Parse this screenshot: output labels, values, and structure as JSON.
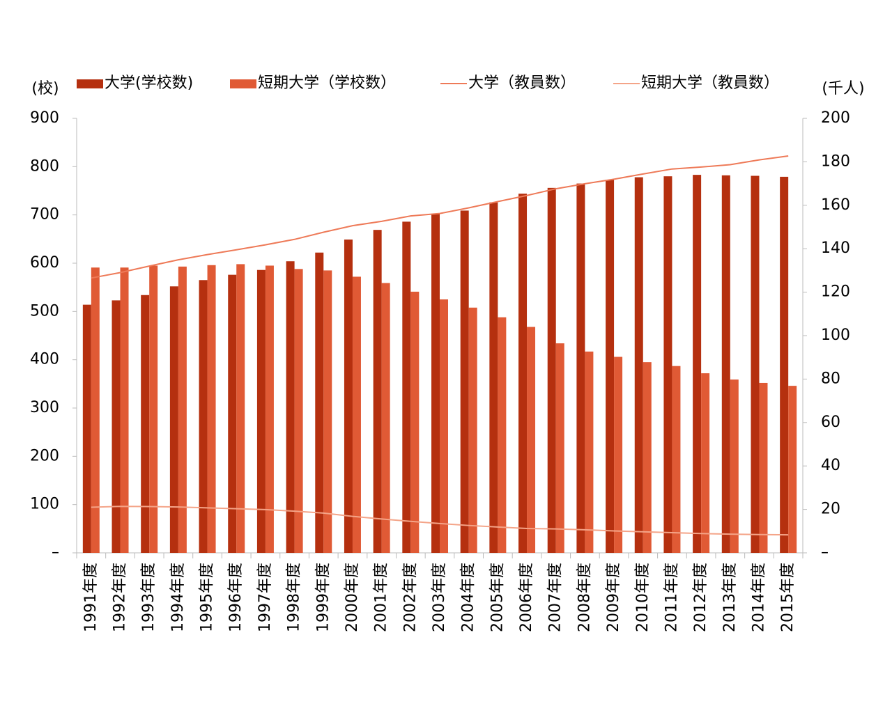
{
  "chart_data": {
    "type": "bar",
    "y_label": "(校)",
    "y2_label": "(千人)",
    "categories": [
      "1991年度",
      "1992年度",
      "1993年度",
      "1994年度",
      "1995年度",
      "1996年度",
      "1997年度",
      "1998年度",
      "1999年度",
      "2000年度",
      "2001年度",
      "2002年度",
      "2003年度",
      "2004年度",
      "2005年度",
      "2006年度",
      "2007年度",
      "2008年度",
      "2009年度",
      "2010年度",
      "2011年度",
      "2012年度",
      "2013年度",
      "2014年度",
      "2015年度"
    ],
    "series": [
      {
        "name": "大学(学校数)",
        "type": "bar",
        "color": "#b5300f",
        "values": [
          514,
          523,
          534,
          552,
          565,
          576,
          586,
          604,
          622,
          649,
          669,
          686,
          702,
          709,
          726,
          744,
          756,
          765,
          773,
          778,
          780,
          783,
          782,
          781,
          779
        ]
      },
      {
        "name": "短期大学（学校数）",
        "type": "bar",
        "color": "#e05a35",
        "values": [
          591,
          591,
          595,
          593,
          596,
          598,
          595,
          588,
          585,
          572,
          559,
          541,
          525,
          508,
          488,
          468,
          434,
          417,
          406,
          395,
          387,
          372,
          359,
          352,
          346
        ]
      },
      {
        "name": "大学（教員数）",
        "type": "line",
        "axis": "y2",
        "color": "#ee7a58",
        "values": [
          126.5,
          129.0,
          132.0,
          134.9,
          137.3,
          139.5,
          141.8,
          144.3,
          147.6,
          150.6,
          152.6,
          155.1,
          156.2,
          158.8,
          161.7,
          164.5,
          167.6,
          169.9,
          172.0,
          174.4,
          176.7,
          177.6,
          178.7,
          180.9,
          182.7
        ]
      },
      {
        "name": "短期大学（教員数）",
        "type": "line",
        "axis": "y2",
        "color": "#f4a488",
        "values": [
          21.0,
          21.4,
          21.3,
          21.1,
          20.7,
          20.3,
          19.9,
          19.2,
          18.3,
          16.8,
          15.6,
          14.5,
          13.5,
          12.6,
          11.9,
          11.2,
          11.0,
          10.6,
          10.1,
          9.7,
          9.3,
          8.9,
          8.6,
          8.4,
          8.3
        ]
      }
    ],
    "ylim": [
      0,
      900
    ],
    "yticks": [
      {
        "value": 0,
        "label": "–"
      },
      100,
      200,
      300,
      400,
      500,
      600,
      700,
      800,
      900
    ],
    "y2lim": [
      0,
      200
    ],
    "y2ticks": [
      {
        "value": 0,
        "label": "–"
      },
      20,
      40,
      60,
      80,
      100,
      120,
      140,
      160,
      180,
      200
    ]
  }
}
